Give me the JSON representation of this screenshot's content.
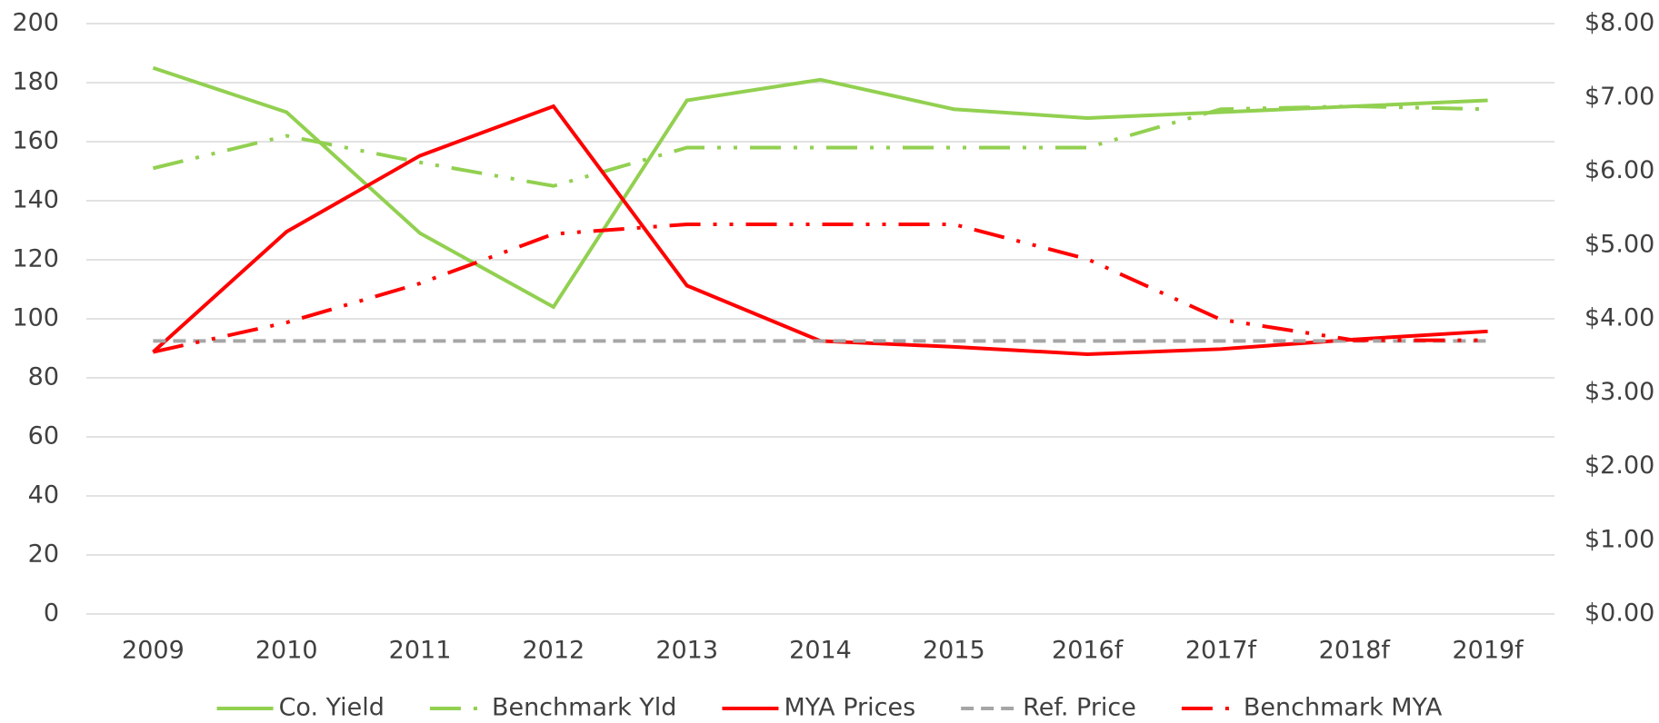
{
  "chart_data": {
    "type": "line",
    "categories": [
      "2009",
      "2010",
      "2011",
      "2012",
      "2013",
      "2014",
      "2015",
      "2016f",
      "2017f",
      "2018f",
      "2019f"
    ],
    "series": [
      {
        "name": "Co. Yield",
        "color": "#92d050",
        "dash": "solid",
        "values": [
          185,
          170,
          129,
          104,
          174,
          181,
          171,
          168,
          170,
          172,
          174
        ]
      },
      {
        "name": "Benchmark Yld",
        "color": "#92d050",
        "dash": "long-dash-dot-dot",
        "values": [
          151,
          162,
          153,
          145,
          158,
          158,
          158,
          158,
          171,
          172,
          171
        ]
      },
      {
        "name": "MYA Prices",
        "color": "#ff0000",
        "dash": "solid",
        "axis": "y2",
        "values": [
          3.55,
          5.18,
          6.21,
          6.88,
          4.45,
          3.7,
          3.62,
          3.52,
          3.59,
          3.72,
          3.83
        ]
      },
      {
        "name": "Ref. Price",
        "color": "#a6a6a6",
        "dash": "dash",
        "axis": "y2",
        "values": [
          3.7,
          3.7,
          3.7,
          3.7,
          3.7,
          3.7,
          3.7,
          3.7,
          3.7,
          3.7,
          3.7
        ]
      },
      {
        "name": "Benchmark MYA",
        "color": "#ff0000",
        "dash": "long-dash-dot-dot",
        "axis": "y2",
        "values": [
          3.55,
          3.95,
          4.48,
          5.15,
          5.28,
          5.28,
          5.28,
          4.81,
          3.99,
          3.71,
          3.71
        ]
      }
    ],
    "ylim": [
      0,
      200
    ],
    "yticks": [
      0,
      20,
      40,
      60,
      80,
      100,
      120,
      140,
      160,
      180,
      200
    ],
    "y2lim": [
      0,
      8
    ],
    "y2ticks": [
      {
        "value": 0,
        "label": "$0.00"
      },
      {
        "value": 1,
        "label": "$1.00"
      },
      {
        "value": 2,
        "label": "$2.00"
      },
      {
        "value": 3,
        "label": "$3.00"
      },
      {
        "value": 4,
        "label": "$4.00"
      },
      {
        "value": 5,
        "label": "$5.00"
      },
      {
        "value": 6,
        "label": "$6.00"
      },
      {
        "value": 7,
        "label": "$7.00"
      },
      {
        "value": 8,
        "label": "$8.00"
      }
    ],
    "grid": true,
    "legend": "bottom"
  }
}
